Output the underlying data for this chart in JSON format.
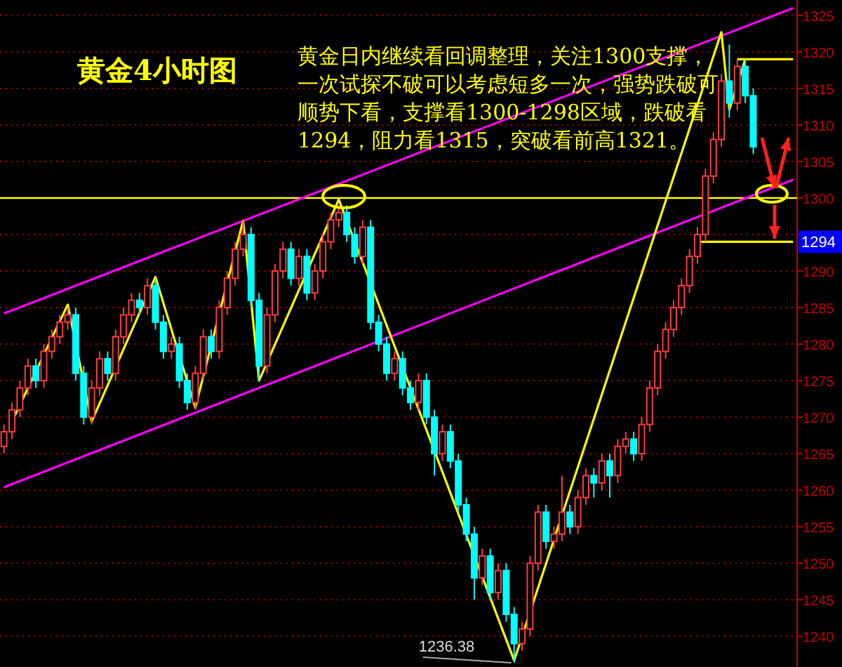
{
  "chart_data": {
    "type": "candlestick",
    "title": "黄金4小时图",
    "categories": [
      null,
      null,
      null,
      null,
      null,
      null,
      null,
      null,
      null,
      null,
      null,
      null,
      null,
      null,
      null,
      null,
      null,
      null,
      null,
      null,
      null,
      null,
      null,
      null,
      null,
      null,
      null,
      null,
      null,
      null,
      null,
      null,
      null,
      null,
      null,
      null,
      null,
      null,
      null,
      null,
      null,
      null,
      null,
      null,
      null,
      null,
      null,
      null,
      null,
      null,
      null,
      null,
      null,
      null,
      null,
      null,
      null,
      null,
      null,
      null,
      null,
      null,
      null,
      null,
      null,
      null,
      null,
      null,
      null,
      null,
      null,
      null,
      null,
      null,
      null,
      null,
      null,
      null,
      null,
      null,
      null,
      null,
      null,
      null,
      null,
      null,
      null,
      null,
      null,
      null,
      null,
      null,
      null,
      null,
      null,
      null,
      null,
      null,
      null,
      null
    ],
    "ohlc": [
      [
        1266,
        1269,
        1265,
        1268
      ],
      [
        1268,
        1272,
        1267,
        1271
      ],
      [
        1271,
        1275,
        1270,
        1274
      ],
      [
        1274,
        1278,
        1273,
        1277
      ],
      [
        1277,
        1278,
        1274,
        1275
      ],
      [
        1275,
        1280,
        1274,
        1279
      ],
      [
        1279,
        1282,
        1278,
        1281
      ],
      [
        1281,
        1284,
        1280,
        1283
      ],
      [
        1283,
        1285,
        1282,
        1284
      ],
      [
        1284,
        1285,
        1275,
        1276
      ],
      [
        1276,
        1277,
        1269,
        1270
      ],
      [
        1270,
        1275,
        1269,
        1274
      ],
      [
        1274,
        1279,
        1273,
        1278
      ],
      [
        1278,
        1279,
        1275,
        1276
      ],
      [
        1276,
        1282,
        1275,
        1281
      ],
      [
        1281,
        1285,
        1280,
        1284
      ],
      [
        1284,
        1287,
        1283,
        1286
      ],
      [
        1286,
        1287,
        1284,
        1285
      ],
      [
        1285,
        1289,
        1284,
        1288
      ],
      [
        1288,
        1289,
        1282,
        1283
      ],
      [
        1283,
        1284,
        1278,
        1279
      ],
      [
        1279,
        1281,
        1278,
        1280
      ],
      [
        1280,
        1281,
        1274,
        1275
      ],
      [
        1275,
        1276,
        1271,
        1272
      ],
      [
        1272,
        1277,
        1271,
        1276
      ],
      [
        1276,
        1282,
        1275,
        1281
      ],
      [
        1281,
        1282,
        1278,
        1279
      ],
      [
        1279,
        1286,
        1278,
        1285
      ],
      [
        1285,
        1290,
        1284,
        1289
      ],
      [
        1289,
        1294,
        1288,
        1293
      ],
      [
        1293,
        1297,
        1292,
        1295
      ],
      [
        1295,
        1296,
        1285,
        1286
      ],
      [
        1286,
        1287,
        1275,
        1277
      ],
      [
        1277,
        1285,
        1276,
        1284
      ],
      [
        1284,
        1291,
        1283,
        1290
      ],
      [
        1290,
        1294,
        1289,
        1293
      ],
      [
        1293,
        1294,
        1288,
        1289
      ],
      [
        1289,
        1293,
        1288,
        1292
      ],
      [
        1292,
        1293,
        1286,
        1287
      ],
      [
        1287,
        1291,
        1286,
        1290
      ],
      [
        1290,
        1295,
        1289,
        1294
      ],
      [
        1294,
        1298,
        1293,
        1297
      ],
      [
        1297,
        1299,
        1296,
        1298
      ],
      [
        1298,
        1299,
        1294,
        1295
      ],
      [
        1295,
        1296,
        1291,
        1292
      ],
      [
        1292,
        1297,
        1291,
        1296
      ],
      [
        1296,
        1297,
        1282,
        1283
      ],
      [
        1283,
        1284,
        1279,
        1280
      ],
      [
        1280,
        1281,
        1275,
        1276
      ],
      [
        1276,
        1279,
        1275,
        1278
      ],
      [
        1278,
        1279,
        1273,
        1274
      ],
      [
        1274,
        1275,
        1271,
        1272
      ],
      [
        1272,
        1276,
        1271,
        1275
      ],
      [
        1275,
        1276,
        1269,
        1270
      ],
      [
        1270,
        1271,
        1262,
        1265
      ],
      [
        1265,
        1269,
        1264,
        1268
      ],
      [
        1268,
        1269,
        1263,
        1264
      ],
      [
        1264,
        1265,
        1257,
        1258
      ],
      [
        1258,
        1259,
        1253,
        1254
      ],
      [
        1254,
        1255,
        1245,
        1248
      ],
      [
        1248,
        1252,
        1247,
        1251
      ],
      [
        1251,
        1252,
        1245,
        1246
      ],
      [
        1246,
        1250,
        1245,
        1249
      ],
      [
        1249,
        1250,
        1242,
        1243
      ],
      [
        1243,
        1244,
        1236.38,
        1239
      ],
      [
        1239,
        1242,
        1238,
        1241
      ],
      [
        1241,
        1251,
        1240,
        1250
      ],
      [
        1250,
        1258,
        1249,
        1257
      ],
      [
        1257,
        1258,
        1252,
        1253
      ],
      [
        1253,
        1255,
        1252,
        1254
      ],
      [
        1254,
        1262,
        1253,
        1257
      ],
      [
        1257,
        1258,
        1254,
        1255
      ],
      [
        1255,
        1260,
        1254,
        1259
      ],
      [
        1259,
        1263,
        1258,
        1262
      ],
      [
        1262,
        1263,
        1259,
        1261
      ],
      [
        1261,
        1265,
        1260,
        1264
      ],
      [
        1264,
        1265,
        1259,
        1262
      ],
      [
        1262,
        1267,
        1261,
        1266
      ],
      [
        1266,
        1268,
        1265,
        1267
      ],
      [
        1267,
        1268,
        1264,
        1265
      ],
      [
        1265,
        1270,
        1264,
        1269
      ],
      [
        1269,
        1275,
        1268,
        1274
      ],
      [
        1274,
        1280,
        1273,
        1279
      ],
      [
        1279,
        1283,
        1278,
        1282
      ],
      [
        1282,
        1286,
        1281,
        1285
      ],
      [
        1285,
        1289,
        1284,
        1288
      ],
      [
        1288,
        1293,
        1287,
        1292
      ],
      [
        1292,
        1296,
        1291,
        1295
      ],
      [
        1295,
        1304,
        1294,
        1303
      ],
      [
        1303,
        1309,
        1302,
        1308
      ],
      [
        1308,
        1317,
        1307,
        1316
      ],
      [
        1316,
        1321,
        1311,
        1313
      ],
      [
        1313,
        1319,
        1312,
        1318
      ],
      [
        1318,
        1319,
        1313,
        1314
      ],
      [
        1314,
        1315,
        1306,
        1307
      ],
      null,
      null,
      null,
      null,
      null
    ],
    "colors": [
      "#ff3c3c",
      "#ff3c3c",
      "#ff3c3c",
      "#ff3c3c",
      "#00ffff",
      "#ff3c3c",
      "#ff3c3c",
      "#ff3c3c",
      "#ff3c3c",
      "#00ffff",
      "#00ffff",
      "#ff3c3c",
      "#ff3c3c",
      "#00ffff",
      "#ff3c3c",
      "#ff3c3c",
      "#ff3c3c",
      "#00ffff",
      "#ff3c3c",
      "#00ffff",
      "#00ffff",
      "#ff3c3c",
      "#00ffff",
      "#00ffff",
      "#ff3c3c",
      "#ff3c3c",
      "#00ffff",
      "#ff3c3c",
      "#ff3c3c",
      "#ff3c3c",
      "#ff3c3c",
      "#00ffff",
      "#00ffff",
      "#ff3c3c",
      "#ff3c3c",
      "#ff3c3c",
      "#00ffff",
      "#ff3c3c",
      "#00ffff",
      "#ff3c3c",
      "#ff3c3c",
      "#ff3c3c",
      "#ff3c3c",
      "#00ffff",
      "#00ffff",
      "#ff3c3c",
      "#00ffff",
      "#00ffff",
      "#00ffff",
      "#ff3c3c",
      "#00ffff",
      "#00ffff",
      "#ff3c3c",
      "#00ffff",
      "#00ffff",
      "#ff3c3c",
      "#00ffff",
      "#00ffff",
      "#00ffff",
      "#00ffff",
      "#ff3c3c",
      "#00ffff",
      "#ff3c3c",
      "#00ffff",
      "#00ffff",
      "#ff3c3c",
      "#ff3c3c",
      "#ff3c3c",
      "#00ffff",
      "#ff3c3c",
      "#ff3c3c",
      "#00ffff",
      "#ff3c3c",
      "#ff3c3c",
      "#00ffff",
      "#ff3c3c",
      "#00ffff",
      "#ff3c3c",
      "#ff3c3c",
      "#00ffff",
      "#ff3c3c",
      "#ff3c3c",
      "#ff3c3c",
      "#ff3c3c",
      "#ff3c3c",
      "#ff3c3c",
      "#ff3c3c",
      "#ff3c3c",
      "#ff3c3c",
      "#ff3c3c",
      "#ff3c3c",
      "#00ffff",
      "#ff3c3c",
      "#00ffff",
      "#00ffff",
      null,
      null,
      null,
      null,
      null
    ],
    "series": [
      {
        "type": "line",
        "color": "#ff00ff",
        "values": [
          1284.2,
          null,
          null,
          null,
          null,
          null,
          null,
          null,
          null,
          null,
          null,
          null,
          null,
          null,
          null,
          null,
          null,
          null,
          null,
          null,
          null,
          null,
          null,
          null,
          null,
          null,
          null,
          null,
          null,
          null,
          null,
          null,
          null,
          null,
          null,
          null,
          null,
          null,
          null,
          null,
          null,
          null,
          null,
          null,
          null,
          null,
          null,
          null,
          null,
          null,
          null,
          null,
          null,
          null,
          null,
          null,
          null,
          null,
          null,
          null,
          null,
          null,
          null,
          null,
          null,
          null,
          null,
          null,
          null,
          null,
          null,
          null,
          null,
          null,
          null,
          null,
          null,
          null,
          null,
          null,
          null,
          null,
          null,
          null,
          null,
          null,
          null,
          null,
          null,
          null,
          null,
          null,
          null,
          null,
          null,
          null,
          null,
          null,
          null,
          1326.0
        ]
      },
      {
        "type": "line",
        "color": "#ff00ff",
        "values": [
          1260.4,
          null,
          null,
          null,
          null,
          null,
          null,
          null,
          null,
          null,
          null,
          null,
          null,
          null,
          null,
          null,
          null,
          null,
          null,
          null,
          null,
          null,
          null,
          null,
          null,
          null,
          null,
          null,
          null,
          null,
          null,
          null,
          null,
          null,
          null,
          null,
          null,
          null,
          null,
          null,
          null,
          null,
          null,
          null,
          null,
          null,
          null,
          null,
          null,
          null,
          null,
          null,
          null,
          null,
          null,
          null,
          null,
          null,
          null,
          null,
          null,
          null,
          null,
          null,
          null,
          null,
          null,
          null,
          null,
          null,
          null,
          null,
          null,
          null,
          null,
          null,
          null,
          null,
          null,
          null,
          null,
          null,
          null,
          null,
          null,
          null,
          null,
          null,
          null,
          null,
          null,
          null,
          null,
          null,
          null,
          null,
          null,
          null,
          null,
          1302.5
        ]
      },
      {
        "type": "line",
        "color": "#ffff00",
        "values": [
          null,
          1269.4,
          null,
          null,
          null,
          null,
          null,
          null,
          1285.4,
          null,
          null,
          1269.4,
          null,
          null,
          null,
          null,
          null,
          null,
          null,
          1289.2,
          null,
          null,
          null,
          null,
          1271.3,
          null,
          null,
          null,
          null,
          null,
          1296.9,
          null,
          1275.0,
          null,
          null,
          null,
          null,
          null,
          null,
          null,
          null,
          null,
          1299.8,
          null,
          null,
          null,
          null,
          null,
          null,
          null,
          null,
          null,
          null,
          null,
          null,
          null,
          null,
          null,
          null,
          null,
          null,
          null,
          null,
          null,
          1236.7,
          null,
          null,
          null,
          null,
          null,
          null,
          null,
          null,
          null,
          null,
          null,
          null,
          null,
          null,
          null,
          null,
          null,
          null,
          null,
          null,
          null,
          null,
          null,
          null,
          null,
          1322.7,
          1312.1,
          null,
          1319.0,
          null,
          null,
          null,
          null,
          null,
          null
        ]
      },
      {
        "type": "line",
        "color": "#ffff00",
        "values": [
          null,
          null,
          null,
          null,
          null,
          null,
          null,
          null,
          null,
          null,
          null,
          null,
          null,
          null,
          null,
          null,
          null,
          null,
          null,
          null,
          null,
          null,
          null,
          null,
          null,
          null,
          null,
          null,
          null,
          null,
          null,
          null,
          null,
          null,
          null,
          null,
          null,
          null,
          null,
          null,
          null,
          null,
          null,
          null,
          null,
          null,
          null,
          null,
          null,
          null,
          null,
          null,
          null,
          null,
          null,
          null,
          null,
          null,
          null,
          null,
          null,
          null,
          null,
          null,
          null,
          null,
          null,
          null,
          null,
          null,
          null,
          null,
          null,
          null,
          null,
          null,
          null,
          null,
          null,
          null,
          null,
          null,
          null,
          null,
          null,
          null,
          null,
          1294,
          null,
          null,
          null,
          null,
          null,
          null,
          null,
          null,
          null,
          null,
          null,
          1294
        ]
      },
      {
        "type": "line",
        "color": "#ffff00",
        "values": [
          null,
          null,
          null,
          null,
          null,
          null,
          null,
          null,
          null,
          null,
          null,
          null,
          null,
          null,
          null,
          null,
          null,
          null,
          null,
          null,
          null,
          null,
          null,
          null,
          null,
          null,
          null,
          null,
          null,
          null,
          null,
          null,
          null,
          null,
          null,
          null,
          null,
          null,
          null,
          null,
          null,
          null,
          null,
          null,
          null,
          null,
          null,
          null,
          null,
          null,
          null,
          null,
          null,
          null,
          null,
          null,
          null,
          null,
          null,
          null,
          null,
          null,
          null,
          null,
          null,
          null,
          null,
          null,
          null,
          null,
          null,
          null,
          null,
          null,
          null,
          null,
          null,
          null,
          null,
          null,
          null,
          null,
          null,
          null,
          null,
          null,
          null,
          null,
          null,
          null,
          null,
          null,
          1319,
          null,
          null,
          null,
          null,
          null,
          null,
          1319
        ]
      }
    ],
    "ref_lines": [
      {
        "axis": "y",
        "value": 1300,
        "color": "#ffff00"
      }
    ],
    "ylim": [
      1235.8,
      1327.1
    ],
    "yticks": [
      1240,
      1245,
      1250,
      1255,
      1260,
      1265,
      1270,
      1275,
      1280,
      1285,
      1290,
      1295,
      1300,
      1305,
      1310,
      1315,
      1320,
      1325
    ],
    "grid": "y",
    "annotations": [
      "黄金日内继续看回调整理，关注1300支撑，一次试探不破可以考虑短多一次，强势跌破可顺势下看，支撑看1300-1298区域，跌破看1294，阻力看1315，突破看前高1321。",
      "1236.38",
      {
        "text": "1294",
        "y": 1294
      }
    ]
  }
}
